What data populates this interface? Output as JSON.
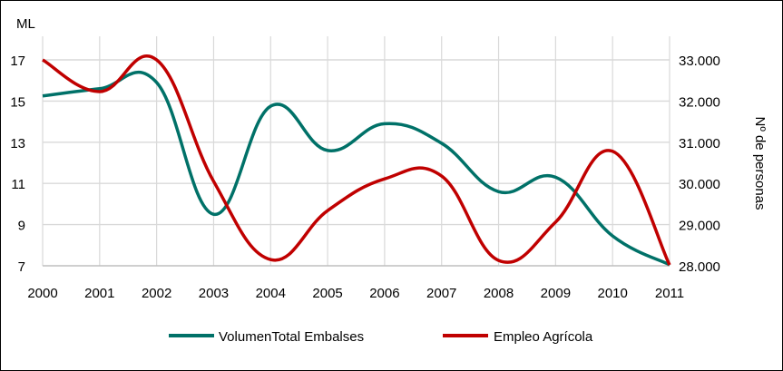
{
  "chart_data": {
    "type": "line",
    "title": "",
    "xlabel": "",
    "ylabel": "ML",
    "y2label": "Nº de personas",
    "x": [
      "2000",
      "2001",
      "2002",
      "2003",
      "2004",
      "2005",
      "2006",
      "2007",
      "2008",
      "2009",
      "2010",
      "2011"
    ],
    "ylim": [
      7,
      17
    ],
    "yticks": [
      "7",
      "9",
      "11",
      "13",
      "15",
      "17"
    ],
    "y2lim": [
      28000,
      33000
    ],
    "y2ticks": [
      "28.000",
      "29.000",
      "30.000",
      "31.000",
      "32.000",
      "33.000"
    ],
    "grid": true,
    "smooth": true,
    "legend_position": "bottom",
    "series": [
      {
        "name": "VolumenTotal Embalses",
        "axis": "left",
        "color": "#007168",
        "values": [
          15.25,
          15.6,
          15.9,
          9.5,
          14.75,
          12.6,
          13.9,
          12.95,
          10.6,
          11.3,
          8.45,
          7.05
        ]
      },
      {
        "name": "Empleo Agrícola",
        "axis": "right",
        "color": "#c00000",
        "values": [
          33000,
          32230,
          33000,
          30050,
          28150,
          29340,
          30110,
          30180,
          28130,
          29060,
          30780,
          28020
        ]
      }
    ]
  }
}
